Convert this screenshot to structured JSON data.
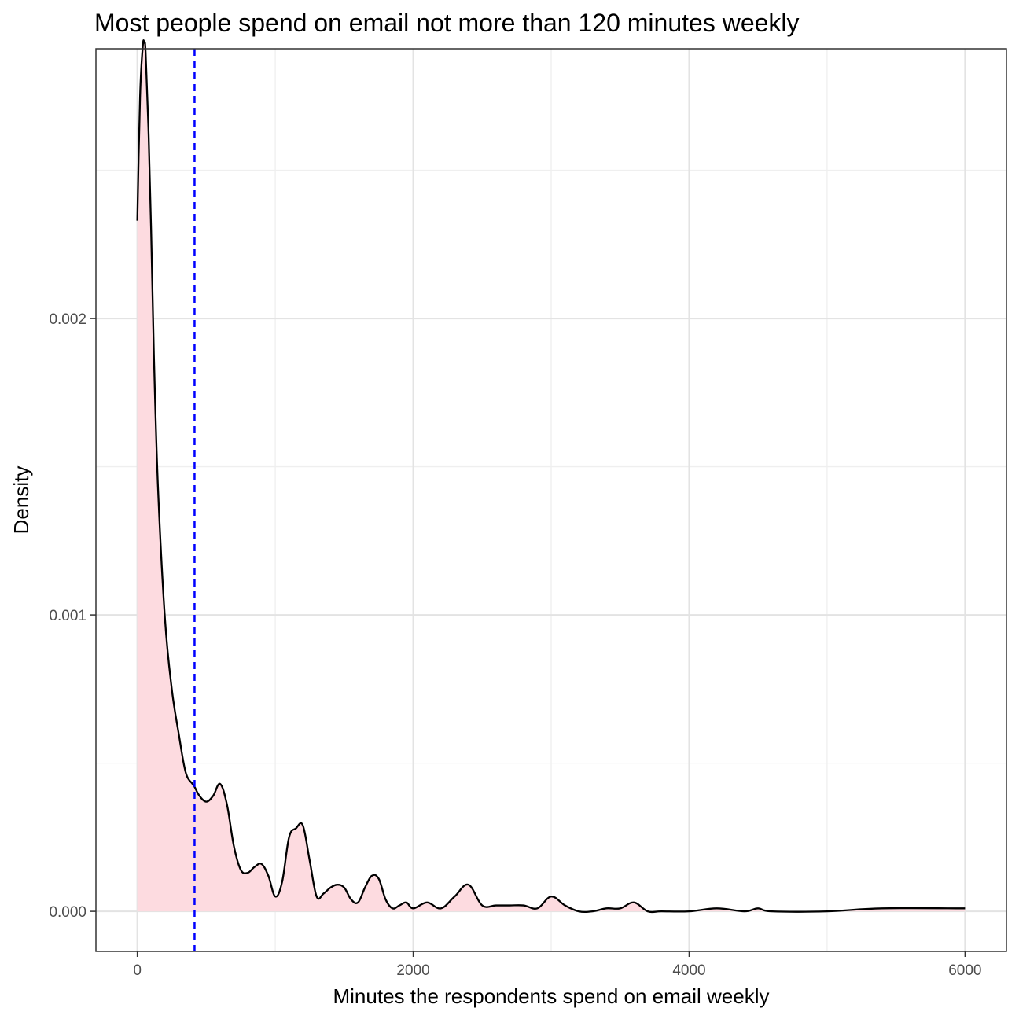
{
  "chart_data": {
    "type": "area",
    "title": "Most people spend on email not more than 120 minutes weekly",
    "xlabel": "Minutes the respondents spend on email weekly",
    "ylabel": "Density",
    "xlim": [
      -300,
      6300
    ],
    "ylim": [
      -0.000135,
      0.00291
    ],
    "x_ticks": [
      0,
      2000,
      4000,
      6000
    ],
    "x_tick_labels": [
      "0",
      "2000",
      "4000",
      "6000"
    ],
    "y_ticks": [
      0,
      0.001,
      0.002
    ],
    "y_tick_labels": [
      "0.000",
      "0.001",
      "0.002"
    ],
    "x_minor_ticks": [
      1000,
      3000,
      5000
    ],
    "y_minor_ticks": [
      0.0005,
      0.0015,
      0.0025
    ],
    "grid": true,
    "legend": "none",
    "reference_line": {
      "x": 415,
      "style": "dashed",
      "color": "#0000ff"
    },
    "colors": {
      "fill": "#fddbe0",
      "line": "#000000"
    },
    "series": [
      {
        "x": [
          0,
          20,
          40,
          50,
          60,
          80,
          100,
          120,
          150,
          200,
          250,
          300,
          350,
          400,
          415,
          450,
          500,
          550,
          600,
          650,
          700,
          750,
          800,
          850,
          900,
          950,
          1000,
          1050,
          1100,
          1150,
          1200,
          1250,
          1300,
          1350,
          1400,
          1450,
          1500,
          1550,
          1600,
          1650,
          1700,
          1750,
          1800,
          1850,
          1900,
          1950,
          2000,
          2100,
          2200,
          2300,
          2400,
          2500,
          2600,
          2700,
          2800,
          2900,
          3000,
          3100,
          3200,
          3300,
          3400,
          3500,
          3600,
          3700,
          3800,
          4000,
          4200,
          4400,
          4500,
          4600,
          5000,
          5400,
          6000
        ],
        "y": [
          0.00233,
          0.00275,
          0.00292,
          0.00293,
          0.0029,
          0.00265,
          0.0023,
          0.00188,
          0.00143,
          0.00099,
          0.00075,
          0.0006,
          0.00047,
          0.00043,
          0.00042,
          0.00039,
          0.00037,
          0.00039,
          0.00043,
          0.00036,
          0.00022,
          0.00014,
          0.00013,
          0.00015,
          0.00016,
          0.00012,
          5e-05,
          0.0001,
          0.00025,
          0.00028,
          0.00029,
          0.00017,
          5e-05,
          6e-05,
          8e-05,
          9e-05,
          8e-05,
          4e-05,
          3e-05,
          8e-05,
          0.00012,
          0.00011,
          4e-05,
          1e-05,
          2e-05,
          3e-05,
          1e-05,
          3e-05,
          1e-05,
          5e-05,
          9e-05,
          2e-05,
          2e-05,
          2e-05,
          2e-05,
          1e-05,
          5e-05,
          2e-05,
          0.0,
          0.0,
          1e-05,
          1e-05,
          3e-05,
          0.0,
          0.0,
          0.0,
          1e-05,
          0.0,
          1e-05,
          0.0,
          0.0,
          1e-05,
          1e-05
        ]
      }
    ]
  }
}
